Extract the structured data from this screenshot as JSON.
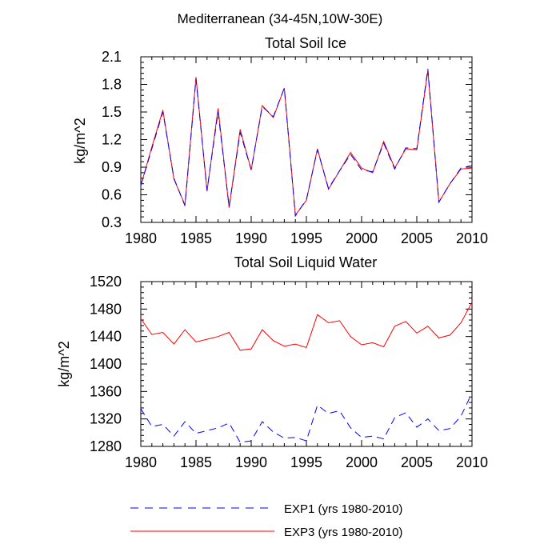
{
  "figure": {
    "suptitle": "Mediterranean (34-45N,10W-30E)"
  },
  "chart_data": [
    {
      "type": "line",
      "title": "Total Soil Ice",
      "ylabel": "kg/m^2",
      "xlabel": "",
      "xlim": [
        1980,
        2010
      ],
      "ylim": [
        0.3,
        2.1
      ],
      "yticks": [
        0.3,
        0.6,
        0.9,
        1.2,
        1.5,
        1.8,
        2.1
      ],
      "ytick_labels": [
        "0.3",
        "0.6",
        "0.9",
        "1.2",
        "1.5",
        "1.8",
        "2.1"
      ],
      "xticks": [
        1980,
        1985,
        1990,
        1995,
        2000,
        2005,
        2010
      ],
      "xtick_labels": [
        "1980",
        "1985",
        "1990",
        "1995",
        "2000",
        "2005",
        "2010"
      ],
      "x": [
        1980,
        1981,
        1982,
        1983,
        1984,
        1985,
        1986,
        1987,
        1988,
        1989,
        1990,
        1991,
        1992,
        1993,
        1994,
        1995,
        1996,
        1997,
        1998,
        1999,
        2000,
        2001,
        2002,
        2003,
        2004,
        2005,
        2006,
        2007,
        2008,
        2009,
        2010
      ],
      "series": [
        {
          "name": "EXP1 (yrs 1980-2010)",
          "color": "#0000ff",
          "dash": "dashed",
          "values": [
            0.7,
            1.1,
            1.5,
            0.78,
            0.48,
            1.86,
            0.65,
            1.5,
            0.47,
            1.28,
            0.87,
            1.56,
            1.45,
            1.76,
            0.37,
            0.55,
            1.09,
            0.67,
            0.86,
            1.04,
            0.87,
            0.85,
            1.16,
            0.88,
            1.11,
            1.1,
            1.97,
            0.52,
            0.72,
            0.89,
            0.92
          ]
        },
        {
          "name": "EXP3 (yrs 1980-2010)",
          "color": "#ff0000",
          "dash": "solid",
          "values": [
            0.7,
            1.12,
            1.52,
            0.77,
            0.49,
            1.88,
            0.64,
            1.54,
            0.46,
            1.31,
            0.87,
            1.57,
            1.44,
            1.76,
            0.38,
            0.54,
            1.1,
            0.66,
            0.86,
            1.06,
            0.89,
            0.84,
            1.18,
            0.89,
            1.1,
            1.09,
            1.95,
            0.52,
            0.72,
            0.88,
            0.89
          ]
        }
      ],
      "grid": false
    },
    {
      "type": "line",
      "title": "Total Soil Liquid Water",
      "ylabel": "kg/m^2",
      "xlabel": "",
      "xlim": [
        1980,
        2010
      ],
      "ylim": [
        1280,
        1520
      ],
      "yticks": [
        1280,
        1320,
        1360,
        1400,
        1440,
        1480,
        1520
      ],
      "ytick_labels": [
        "1280",
        "1320",
        "1360",
        "1400",
        "1440",
        "1480",
        "1520"
      ],
      "xticks": [
        1980,
        1985,
        1990,
        1995,
        2000,
        2005,
        2010
      ],
      "xtick_labels": [
        "1980",
        "1985",
        "1990",
        "1995",
        "2000",
        "2005",
        "2010"
      ],
      "x": [
        1980,
        1981,
        1982,
        1983,
        1984,
        1985,
        1986,
        1987,
        1988,
        1989,
        1990,
        1991,
        1992,
        1993,
        1994,
        1995,
        1996,
        1997,
        1998,
        1999,
        2000,
        2001,
        2002,
        2003,
        2004,
        2005,
        2006,
        2007,
        2008,
        2009,
        2010
      ],
      "series": [
        {
          "name": "EXP1 (yrs 1980-2010)",
          "color": "#0000ff",
          "dash": "dashed",
          "values": [
            1335,
            1309,
            1312,
            1295,
            1316,
            1299,
            1303,
            1307,
            1314,
            1286,
            1288,
            1316,
            1301,
            1292,
            1293,
            1288,
            1340,
            1328,
            1332,
            1307,
            1293,
            1295,
            1291,
            1322,
            1329,
            1308,
            1320,
            1303,
            1306,
            1324,
            1358
          ]
        },
        {
          "name": "EXP3 (yrs 1980-2010)",
          "color": "#ff0000",
          "dash": "solid",
          "values": [
            1466,
            1443,
            1446,
            1429,
            1450,
            1432,
            1436,
            1440,
            1446,
            1420,
            1422,
            1450,
            1434,
            1426,
            1429,
            1424,
            1472,
            1460,
            1463,
            1440,
            1428,
            1431,
            1425,
            1455,
            1462,
            1445,
            1455,
            1438,
            1442,
            1460,
            1490
          ]
        }
      ],
      "grid": false
    }
  ],
  "legend": {
    "placement": "bottom",
    "entries": [
      {
        "label": "EXP1 (yrs 1980-2010)",
        "color": "#0000ff",
        "dash": "dashed"
      },
      {
        "label": "EXP3 (yrs 1980-2010)",
        "color": "#ff0000",
        "dash": "solid"
      }
    ]
  }
}
